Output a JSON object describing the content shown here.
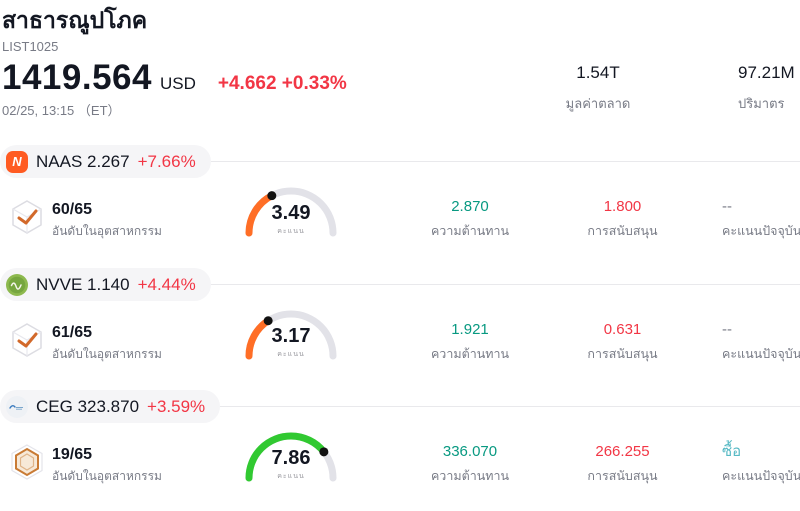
{
  "header": {
    "title": "สาธารณูปโภค",
    "symbol_code": "LIST1025",
    "price": "1419.564",
    "currency": "USD",
    "change": "+4.662 +0.33%",
    "timestamp": "02/25, 13:15 （ET）",
    "market_cap": {
      "value": "1.54T",
      "label": "มูลค่าตลาด"
    },
    "volume": {
      "value": "97.21M",
      "label": "ปริมาตร"
    }
  },
  "labels": {
    "industry_rank": "อันดับในอุตสาหกรรม",
    "gauge": "คะแนน",
    "resistance": "ความต้านทาน",
    "support": "การสนับสนุน",
    "current_score": "คะแนนปัจจุบัน"
  },
  "rows": [
    {
      "ticker": "NAAS",
      "price": "2.267",
      "change": "+7.66%",
      "rank": "60/65",
      "rank_icon": "cube-check-icon",
      "logo_icon": "naas-logo",
      "logo_letter": "N",
      "gauge": {
        "value": 3.49,
        "max": 10,
        "display": "3.49",
        "color": "#ff6e26"
      },
      "resistance": "2.870",
      "support": "1.800",
      "current_score": "--",
      "current_score_color": "#787b86"
    },
    {
      "ticker": "NVVE",
      "price": "1.140",
      "change": "+4.44%",
      "rank": "61/65",
      "rank_icon": "cube-check-icon",
      "logo_icon": "nvve-logo",
      "gauge": {
        "value": 3.17,
        "max": 10,
        "display": "3.17",
        "color": "#ff6e26"
      },
      "resistance": "1.921",
      "support": "0.631",
      "current_score": "--",
      "current_score_color": "#787b86"
    },
    {
      "ticker": "CEG",
      "price": "323.870",
      "change": "+3.59%",
      "rank": "19/65",
      "rank_icon": "hexagon-badge-icon",
      "logo_icon": "ceg-logo",
      "gauge": {
        "value": 7.86,
        "max": 10,
        "display": "7.86",
        "color": "#31c931"
      },
      "resistance": "336.070",
      "support": "266.255",
      "current_score": "ซื้อ",
      "current_score_color": "#56b9c4"
    }
  ],
  "colors": {
    "up_green": "#089981",
    "down_red": "#f23645",
    "change_red": "#f23645",
    "label_gray": "#787b86",
    "gauge_track": "#e2e2e8",
    "gauge_dot": "#111111",
    "pill_bg": "#f5f5f7",
    "divider": "#e9e9ec"
  }
}
